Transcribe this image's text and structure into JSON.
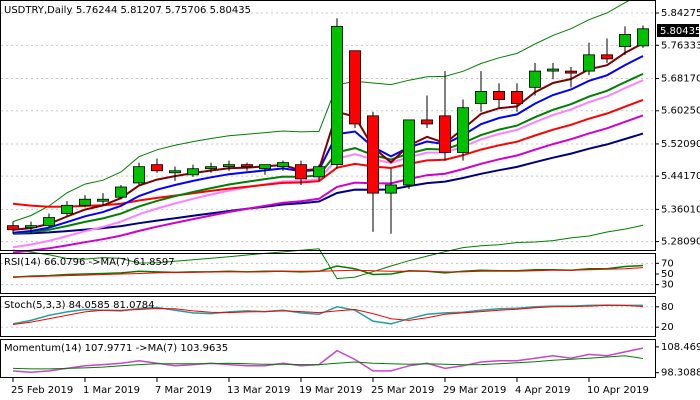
{
  "chart_data": [
    {
      "type": "candlestick",
      "title": "USDTRY,Daily",
      "ohlc_readout": "5.76244 5.81207 5.75706 5.80435",
      "current_price_label": "5.80435",
      "yticks": [
        "5.84275",
        "5.76333",
        "5.68170",
        "5.60250",
        "5.52090",
        "5.44170",
        "5.36010",
        "5.28090"
      ],
      "ylim": [
        5.27,
        5.86
      ],
      "xticks": [
        "25 Feb 2019",
        "1 Mar 2019",
        "7 Mar 2019",
        "13 Mar 2019",
        "19 Mar 2019",
        "25 Mar 2019",
        "29 Mar 2019",
        "4 Apr 2019",
        "10 Apr 2019"
      ],
      "dates": [
        "2019-02-25",
        "2019-02-26",
        "2019-02-27",
        "2019-02-28",
        "2019-03-01",
        "2019-03-04",
        "2019-03-05",
        "2019-03-06",
        "2019-03-07",
        "2019-03-08",
        "2019-03-11",
        "2019-03-12",
        "2019-03-13",
        "2019-03-14",
        "2019-03-15",
        "2019-03-18",
        "2019-03-19",
        "2019-03-20",
        "2019-03-21",
        "2019-03-22",
        "2019-03-25",
        "2019-03-26",
        "2019-03-27",
        "2019-03-28",
        "2019-03-29",
        "2019-04-01",
        "2019-04-02",
        "2019-04-03",
        "2019-04-04",
        "2019-04-05",
        "2019-04-08",
        "2019-04-09",
        "2019-04-10",
        "2019-04-11",
        "2019-04-12",
        "2019-04-15"
      ],
      "candles": [
        {
          "o": 5.32,
          "h": 5.33,
          "l": 5.3,
          "c": 5.31
        },
        {
          "o": 5.315,
          "h": 5.33,
          "l": 5.3,
          "c": 5.32
        },
        {
          "o": 5.32,
          "h": 5.35,
          "l": 5.315,
          "c": 5.34
        },
        {
          "o": 5.35,
          "h": 5.38,
          "l": 5.345,
          "c": 5.37
        },
        {
          "o": 5.37,
          "h": 5.395,
          "l": 5.365,
          "c": 5.385
        },
        {
          "o": 5.38,
          "h": 5.4,
          "l": 5.37,
          "c": 5.385
        },
        {
          "o": 5.39,
          "h": 5.42,
          "l": 5.385,
          "c": 5.415
        },
        {
          "o": 5.425,
          "h": 5.475,
          "l": 5.42,
          "c": 5.465
        },
        {
          "o": 5.47,
          "h": 5.485,
          "l": 5.45,
          "c": 5.455
        },
        {
          "o": 5.45,
          "h": 5.465,
          "l": 5.43,
          "c": 5.455
        },
        {
          "o": 5.445,
          "h": 5.47,
          "l": 5.44,
          "c": 5.46
        },
        {
          "o": 5.46,
          "h": 5.475,
          "l": 5.45,
          "c": 5.465
        },
        {
          "o": 5.465,
          "h": 5.48,
          "l": 5.455,
          "c": 5.47
        },
        {
          "o": 5.47,
          "h": 5.475,
          "l": 5.455,
          "c": 5.465
        },
        {
          "o": 5.46,
          "h": 5.47,
          "l": 5.445,
          "c": 5.47
        },
        {
          "o": 5.465,
          "h": 5.48,
          "l": 5.455,
          "c": 5.475
        },
        {
          "o": 5.47,
          "h": 5.48,
          "l": 5.42,
          "c": 5.435
        },
        {
          "o": 5.44,
          "h": 5.47,
          "l": 5.43,
          "c": 5.465
        },
        {
          "o": 5.47,
          "h": 5.83,
          "l": 5.46,
          "c": 5.81
        },
        {
          "o": 5.75,
          "h": 5.75,
          "l": 5.56,
          "c": 5.57
        },
        {
          "o": 5.59,
          "h": 5.6,
          "l": 5.305,
          "c": 5.4
        },
        {
          "o": 5.4,
          "h": 5.46,
          "l": 5.3,
          "c": 5.42
        },
        {
          "o": 5.42,
          "h": 5.58,
          "l": 5.41,
          "c": 5.58
        },
        {
          "o": 5.58,
          "h": 5.64,
          "l": 5.56,
          "c": 5.57
        },
        {
          "o": 5.59,
          "h": 5.7,
          "l": 5.48,
          "c": 5.5
        },
        {
          "o": 5.5,
          "h": 5.63,
          "l": 5.48,
          "c": 5.61
        },
        {
          "o": 5.62,
          "h": 5.7,
          "l": 5.6,
          "c": 5.65
        },
        {
          "o": 5.65,
          "h": 5.67,
          "l": 5.61,
          "c": 5.63
        },
        {
          "o": 5.65,
          "h": 5.67,
          "l": 5.6,
          "c": 5.62
        },
        {
          "o": 5.66,
          "h": 5.72,
          "l": 5.64,
          "c": 5.7
        },
        {
          "o": 5.7,
          "h": 5.72,
          "l": 5.68,
          "c": 5.705
        },
        {
          "o": 5.7,
          "h": 5.71,
          "l": 5.66,
          "c": 5.695
        },
        {
          "o": 5.7,
          "h": 5.77,
          "l": 5.69,
          "c": 5.74
        },
        {
          "o": 5.74,
          "h": 5.78,
          "l": 5.72,
          "c": 5.73
        },
        {
          "o": 5.76,
          "h": 5.81,
          "l": 5.74,
          "c": 5.79
        },
        {
          "o": 5.762,
          "h": 5.812,
          "l": 5.757,
          "c": 5.804
        }
      ],
      "overlay_colors": {
        "ma_dark_red": "#800000",
        "ma_blue": "#0000ff",
        "ma_green": "#008000",
        "ma_red": "#ff0000",
        "ma_violet": "#ff80ff",
        "ma_magenta": "#d000d0",
        "ma_navy": "#000080",
        "bands": "#008000",
        "candle_up": "#00c000",
        "candle_down": "#ff0000"
      }
    },
    {
      "type": "line",
      "title": "RSI(14) 66.0796  ->MA(7) 61.8597",
      "yticks": [
        "70",
        "50",
        "30"
      ],
      "ylim": [
        20,
        80
      ],
      "series": [
        {
          "values": [
            44,
            46,
            47,
            49,
            50,
            51,
            52,
            55,
            54,
            53,
            54,
            54,
            55,
            54,
            55,
            55,
            54,
            55,
            65,
            60,
            49,
            50,
            56,
            55,
            52,
            55,
            57,
            56,
            56,
            58,
            58,
            57,
            60,
            60,
            64,
            66
          ]
        },
        {
          "values": [
            45,
            45,
            46,
            47,
            48,
            49,
            50,
            51,
            52,
            53,
            53,
            54,
            54,
            54,
            54,
            55,
            55,
            55,
            56,
            57,
            56,
            55,
            55,
            55,
            54,
            54,
            55,
            55,
            55,
            56,
            57,
            57,
            58,
            59,
            60,
            62
          ]
        }
      ]
    },
    {
      "type": "line",
      "title": "Stoch(5,3,3) 84.0585 81.0784",
      "yticks": [
        "80",
        "20"
      ],
      "ylim": [
        0,
        100
      ],
      "series": [
        {
          "values": [
            30,
            40,
            55,
            65,
            72,
            70,
            68,
            75,
            78,
            70,
            62,
            60,
            65,
            68,
            66,
            70,
            62,
            58,
            80,
            70,
            38,
            30,
            45,
            58,
            62,
            64,
            70,
            74,
            76,
            80,
            82,
            82,
            84,
            85,
            84,
            84
          ]
        },
        {
          "values": [
            28,
            35,
            45,
            55,
            65,
            70,
            70,
            72,
            75,
            74,
            68,
            64,
            63,
            65,
            66,
            68,
            66,
            63,
            68,
            72,
            60,
            45,
            40,
            48,
            58,
            62,
            66,
            70,
            73,
            77,
            80,
            81,
            82,
            84,
            84,
            81
          ]
        }
      ]
    },
    {
      "type": "line",
      "title": "Momentum(14) 107.9771  ->MA(7) 103.9635",
      "yticks": [
        "108.4693",
        "98.3088"
      ],
      "ylim": [
        97,
        110
      ],
      "series": [
        {
          "values": [
            99,
            98.5,
            99,
            100,
            101,
            101.5,
            102,
            103,
            102,
            101,
            101.5,
            102,
            101.5,
            101,
            101,
            102,
            101,
            101.5,
            107,
            103.5,
            99,
            99,
            101,
            102,
            100,
            101,
            102.5,
            103,
            103,
            104,
            105,
            104,
            105.5,
            105,
            106.5,
            108
          ]
        },
        {
          "values": [
            100,
            99.8,
            99.8,
            100,
            100.2,
            100.5,
            101,
            101.5,
            101.8,
            101.8,
            101.8,
            101.9,
            102,
            101.8,
            101.6,
            101.6,
            101.5,
            101.5,
            102,
            102.5,
            102,
            101.8,
            101.6,
            101.8,
            101.6,
            101.4,
            101.5,
            101.8,
            102.2,
            102.6,
            103.2,
            103.6,
            104,
            104.5,
            105,
            103.9
          ]
        }
      ]
    }
  ]
}
